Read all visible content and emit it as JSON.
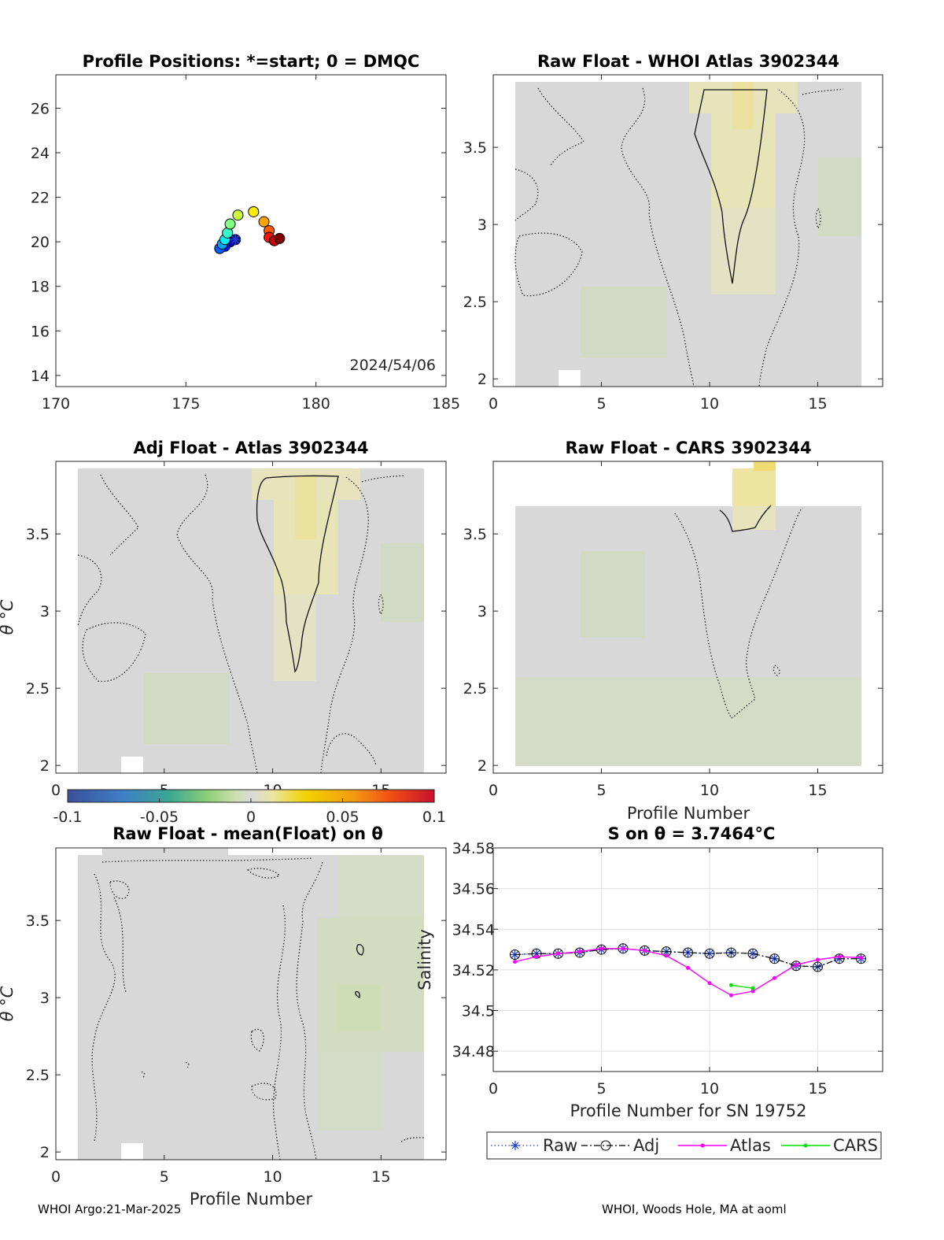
{
  "footer": {
    "left": "WHOI Argo:21-Mar-2025",
    "right": "WHOI, Woods Hole, MA at aoml"
  },
  "colorbar": {
    "ticks": [
      "-0.1",
      "-0.05",
      "0",
      "0.05",
      "0.1"
    ],
    "range": [
      -0.1,
      0.1
    ]
  },
  "chart_data": [
    {
      "type": "scatter",
      "title": "Profile Positions: *=start; 0 = DMQC",
      "annotation": "2024/54/06",
      "xlim": [
        170,
        185
      ],
      "ylim": [
        13.5,
        27.5
      ],
      "xticks": [
        "170",
        "175",
        "180",
        "185"
      ],
      "yticks": [
        "14",
        "16",
        "18",
        "20",
        "22",
        "24",
        "26"
      ],
      "start_marker": {
        "x": 176.9,
        "y": 20.1
      },
      "points": [
        {
          "x": 176.9,
          "y": 20.1
        },
        {
          "x": 176.7,
          "y": 20.0
        },
        {
          "x": 176.5,
          "y": 19.8
        },
        {
          "x": 176.3,
          "y": 19.7
        },
        {
          "x": 176.4,
          "y": 19.9
        },
        {
          "x": 176.5,
          "y": 20.1
        },
        {
          "x": 176.6,
          "y": 20.4
        },
        {
          "x": 176.7,
          "y": 20.8
        },
        {
          "x": 177.0,
          "y": 21.2
        },
        {
          "x": 177.6,
          "y": 21.35
        },
        {
          "x": 178.0,
          "y": 20.9
        },
        {
          "x": 178.2,
          "y": 20.5
        },
        {
          "x": 178.2,
          "y": 20.2
        },
        {
          "x": 178.4,
          "y": 20.05
        },
        {
          "x": 178.6,
          "y": 20.15
        }
      ]
    },
    {
      "type": "heatmap",
      "title": "Raw Float - WHOI Atlas  3902344",
      "xlim": [
        0,
        18
      ],
      "ylim": [
        1.95,
        3.97
      ],
      "xticks": [
        "0",
        "5",
        "10",
        "15"
      ],
      "yticks": [
        "2",
        "2.5",
        "3",
        "3.5"
      ],
      "xlabel": "",
      "ylabel": ""
    },
    {
      "type": "heatmap",
      "title": "Adj Float - Atlas  3902344",
      "xlim": [
        0,
        18
      ],
      "ylim": [
        1.95,
        3.97
      ],
      "xticks": [
        "0",
        "5",
        "10",
        "15"
      ],
      "yticks": [
        "2",
        "2.5",
        "3",
        "3.5"
      ],
      "xlabel": "",
      "ylabel": "θ °C"
    },
    {
      "type": "heatmap",
      "title": "Raw Float - CARS  3902344",
      "xlim": [
        0,
        18
      ],
      "ylim": [
        1.95,
        3.97
      ],
      "xticks": [
        "0",
        "5",
        "10",
        "15"
      ],
      "yticks": [
        "2",
        "2.5",
        "3",
        "3.5"
      ],
      "xlabel": "Profile Number",
      "ylabel": ""
    },
    {
      "type": "heatmap",
      "title": "Raw Float - mean(Float) on θ",
      "xlim": [
        0,
        18
      ],
      "ylim": [
        1.95,
        3.97
      ],
      "xticks": [
        "0",
        "5",
        "10",
        "15"
      ],
      "yticks": [
        "2",
        "2.5",
        "3",
        "3.5"
      ],
      "xlabel": "Profile Number",
      "ylabel": "θ °C"
    },
    {
      "type": "line",
      "title": "S on θ = 3.7464°C",
      "xlim": [
        0,
        18
      ],
      "ylim": [
        34.47,
        34.58
      ],
      "xticks": [
        "0",
        "5",
        "10",
        "15"
      ],
      "yticks": [
        "34.48",
        "34.5",
        "34.52",
        "34.54",
        "34.56",
        "34.58"
      ],
      "xlabel": "Profile Number for SN 19752",
      "ylabel": "Salinity",
      "x": [
        1,
        2,
        3,
        4,
        5,
        6,
        7,
        8,
        9,
        10,
        11,
        12,
        13,
        14,
        15,
        16,
        17
      ],
      "series": [
        {
          "name": "Raw",
          "color": "#1f3fbf",
          "values": [
            34.5275,
            34.528,
            34.528,
            34.5285,
            34.53,
            34.5305,
            34.5295,
            34.529,
            34.5285,
            34.528,
            34.5285,
            34.528,
            34.5255,
            34.522,
            34.5215,
            34.5255,
            34.5255
          ]
        },
        {
          "name": "Adj",
          "color": "#000000",
          "values": [
            34.5275,
            34.528,
            34.528,
            34.5285,
            34.53,
            34.5305,
            34.5295,
            34.529,
            34.5285,
            34.528,
            34.5285,
            34.528,
            34.5255,
            34.522,
            34.5215,
            34.5255,
            34.5255
          ]
        },
        {
          "name": "Atlas",
          "color": "#ff00ff",
          "values": [
            34.524,
            34.5265,
            34.528,
            34.529,
            34.5305,
            34.5305,
            34.5295,
            34.527,
            34.521,
            34.5135,
            34.5075,
            34.5095,
            34.516,
            34.5225,
            34.525,
            34.5265,
            34.526
          ]
        },
        {
          "name": "CARS",
          "color": "#00e000",
          "x": [
            11,
            12
          ],
          "values": [
            34.5125,
            34.511
          ]
        }
      ]
    }
  ]
}
